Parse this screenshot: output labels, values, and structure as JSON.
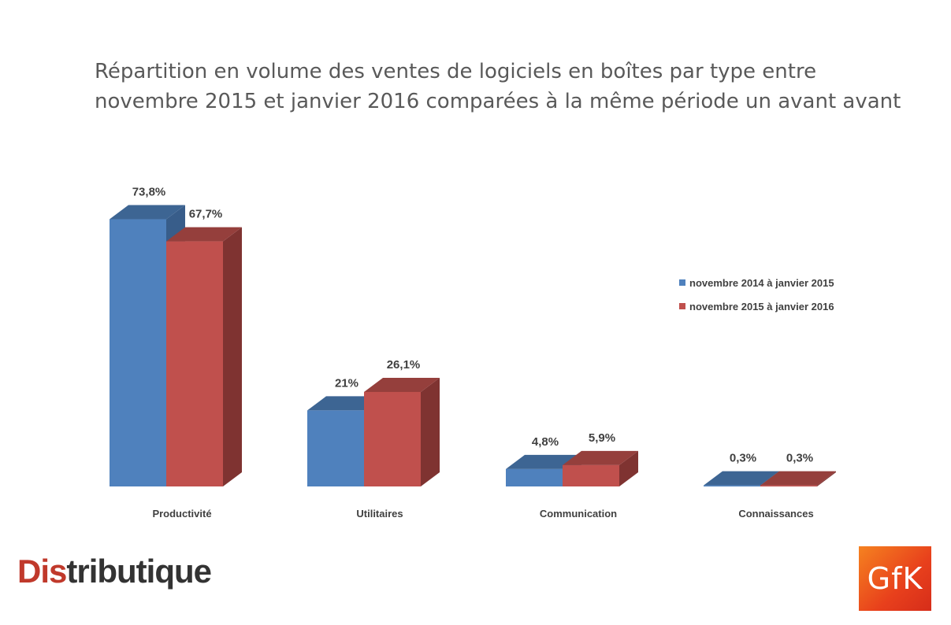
{
  "chart_data": {
    "type": "bar",
    "title_lines": [
      "Répartition en volume des ventes de logiciels en boîtes par type entre",
      "novembre 2015 et janvier 2016 comparées à la même période un avant  avant"
    ],
    "categories": [
      "Productivité",
      "Utilitaires",
      "Communication",
      "Connaissances"
    ],
    "series": [
      {
        "name": "novembre 2014 à janvier 2015",
        "values": [
          73.8,
          21,
          4.8,
          0.3
        ],
        "labels": [
          "73,8%",
          "21%",
          "4,8%",
          "0,3%"
        ],
        "color": "#4f81bd",
        "top_color": "#3d6593",
        "side_color": "#385d8a"
      },
      {
        "name": "novembre 2015 à janvier 2016",
        "values": [
          67.7,
          26.1,
          5.9,
          0.3
        ],
        "labels": [
          "67,7%",
          "26,1%",
          "5,9%",
          "0,3%"
        ],
        "color": "#c0504d",
        "top_color": "#953f3c",
        "side_color": "#7f3331"
      }
    ],
    "ylim": [
      0,
      80
    ],
    "legend_position": "right",
    "grid": false,
    "style": "3d-column"
  },
  "legend": {
    "item1": "novembre 2014 à janvier 2015",
    "item2": "novembre 2015 à janvier 2016"
  },
  "logos": {
    "distributique_prefix": "Dis",
    "distributique_rest": "tributique",
    "gfk": "GfK"
  },
  "colors": {
    "series1": "#4f81bd",
    "series2": "#c0504d",
    "title": "#595959",
    "gfk_orange": "#f58220"
  }
}
